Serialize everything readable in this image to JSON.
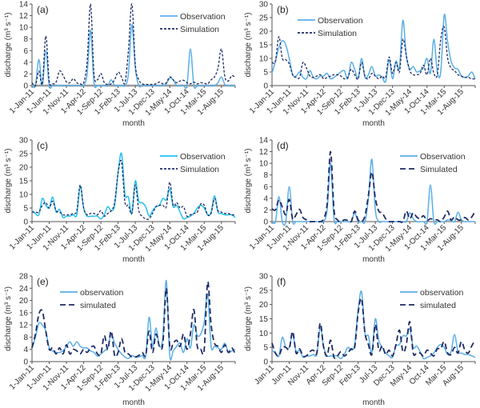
{
  "colors": {
    "observation": "#5aaee6",
    "observation_c": "#25c0ee",
    "simulation": "#1f2a66",
    "baseline": "#9a9a9a"
  },
  "chart_data": [
    {
      "type": "line",
      "panel_label": "(a)",
      "ylabel": "discharge (m³ s⁻¹)",
      "xlabel": "month",
      "ylim": [
        0,
        14
      ],
      "ystep": 2,
      "legend": "top-right",
      "dash": "short",
      "xtick_labels": [
        "1-Jan-11",
        "1-Jun-11",
        "1-Nov-11",
        "1-Apr-12",
        "1-Sep-12",
        "1-Feb-13",
        "1-Jul-13",
        "1-Dec-13",
        "1-May-14",
        "1-Oct-14",
        "1-Mar-15",
        "1-Aug-15"
      ],
      "x_start": "Jan-2011",
      "x_end": "Dec-2015",
      "series": [
        {
          "name": "Observation",
          "values": [
            0,
            0,
            4.5,
            0,
            6,
            0,
            0,
            0,
            0,
            0,
            0,
            0,
            0,
            0,
            0,
            0,
            2,
            9.5,
            0.5,
            0,
            0,
            0,
            0,
            1,
            0,
            0,
            0,
            0,
            2,
            10.5,
            3,
            0,
            0,
            0,
            0,
            0,
            0,
            0,
            0,
            0.3,
            1.3,
            1,
            0,
            0,
            0,
            0,
            6.3,
            0,
            0,
            0,
            0,
            0,
            0,
            0,
            0.5,
            1.5,
            0.2,
            0,
            0,
            0
          ]
        },
        {
          "name": "Simulation",
          "values": [
            0.5,
            0,
            2.5,
            0.3,
            8.5,
            0.8,
            0.3,
            0.6,
            2.5,
            1.8,
            0.6,
            0.5,
            1.2,
            0.5,
            0.3,
            0.5,
            4,
            14,
            2,
            1,
            2.1,
            0.5,
            0.2,
            0.3,
            1,
            2.3,
            1.5,
            0.5,
            6,
            14,
            3.5,
            1,
            0.3,
            0.2,
            0.2,
            0.2,
            0.3,
            0.6,
            0.3,
            0.5,
            1.5,
            1,
            0.5,
            0.8,
            0.9,
            0.5,
            0.3,
            0.6,
            0.3,
            0.5,
            0.4,
            0.3,
            1,
            1.5,
            3,
            6.3,
            1.5,
            0.8,
            1.7,
            1.4
          ]
        }
      ]
    },
    {
      "type": "line",
      "panel_label": "(b)",
      "ylabel": "discharge (m³ s⁻¹)",
      "xlabel": "month",
      "ylim": [
        0,
        30
      ],
      "ystep": 5,
      "legend": "top-left",
      "dash": "short",
      "xtick_labels": [
        "1-Jan-11",
        "1-Jun-11",
        "1-Nov-11",
        "1-Apr-12",
        "1-Sep-12",
        "1-Feb-13",
        "1-Jul-13",
        "1-Dec-13",
        "1-May-14",
        "1-Oct-14",
        "1-Mar-15",
        "1-Aug-15"
      ],
      "x_start": "Jan-2011",
      "x_end": "Dec-2015",
      "series": [
        {
          "name": "Observation",
          "values": [
            4.5,
            9,
            14,
            16.5,
            15,
            10,
            4,
            3.5,
            5,
            3,
            2.5,
            5.5,
            3,
            2.5,
            3.5,
            3.5,
            4.5,
            2.5,
            3,
            4,
            5,
            5.5,
            2.5,
            8.5,
            6,
            2.5,
            10,
            3,
            4,
            7,
            3.5,
            4,
            3,
            1.5,
            9.5,
            2.5,
            9,
            6.5,
            24,
            11,
            6,
            7,
            5,
            5.5,
            6.5,
            10,
            4.5,
            17,
            5,
            5,
            26,
            16,
            9,
            6.5,
            6,
            3.5,
            3,
            3.5,
            5,
            2.5
          ]
        },
        {
          "name": "Simulation",
          "values": [
            8.5,
            9,
            18,
            10,
            9.5,
            8,
            4,
            3,
            3,
            8.5,
            6.5,
            3.5,
            3,
            3.5,
            4,
            2.5,
            3,
            3.5,
            4,
            4,
            3.5,
            2.5,
            3,
            6,
            4,
            2.5,
            8.5,
            3.5,
            2.5,
            4.5,
            3.5,
            2.5,
            3.5,
            3,
            10.5,
            4.5,
            8.5,
            5,
            17,
            11,
            5.5,
            4,
            4,
            4.5,
            7.5,
            4,
            10,
            4.5,
            4,
            17,
            21.5,
            10,
            6.5,
            5.5,
            4,
            3.5,
            3,
            3,
            2.5,
            2.5
          ]
        }
      ]
    },
    {
      "type": "line",
      "panel_label": "(c)",
      "ylabel": "discharge (m³ s⁻¹)",
      "xlabel": "month",
      "ylim": [
        0,
        30
      ],
      "ystep": 5,
      "legend": "top-right",
      "dash": "short",
      "xtick_labels": [
        "1-Jan-11",
        "1-Jun-11",
        "1-Nov-11",
        "1-Apr-12",
        "1-Sep-12",
        "1-Feb-13",
        "1-Jul-13",
        "1-Dec-13",
        "1-May-14",
        "1-Oct-14",
        "1-Mar-15",
        "1-Aug-15"
      ],
      "x_start": "Jan-2011",
      "x_end": "Dec-2015",
      "series": [
        {
          "name": "Observation",
          "values": [
            4,
            3,
            2.5,
            8.5,
            6,
            5,
            9,
            3.5,
            4.5,
            1.5,
            2,
            2,
            2.5,
            2.5,
            13,
            5,
            2,
            2,
            2,
            2,
            1,
            2.5,
            5.5,
            4,
            6,
            18,
            25,
            10,
            9,
            3,
            15,
            7.5,
            7,
            5.5,
            2,
            4,
            5.5,
            6,
            8.5,
            8,
            12,
            5.5,
            6,
            3.5,
            1,
            1.5,
            2,
            3,
            5,
            6,
            5,
            2.5,
            3.5,
            9.5,
            3.5,
            3,
            2.5,
            2.5,
            2.5,
            1.5
          ]
        },
        {
          "name": "Simulation",
          "values": [
            3.5,
            3.5,
            3.5,
            6,
            7,
            5,
            7.5,
            4,
            3.5,
            2.5,
            2.5,
            2.5,
            3,
            4,
            13.5,
            5,
            2.5,
            3,
            3,
            2.5,
            4,
            2,
            3,
            4,
            7,
            18,
            22,
            7,
            6,
            3,
            13.5,
            4,
            2,
            1,
            1,
            3,
            5.5,
            6,
            6,
            5.5,
            14.5,
            6,
            7,
            5,
            5.5,
            2,
            2.5,
            3,
            3.5,
            6.5,
            6,
            2.5,
            3,
            8.5,
            4,
            3.5,
            3,
            3,
            2.5,
            2.5
          ]
        }
      ]
    },
    {
      "type": "line",
      "panel_label": "(d)",
      "ylabel": "discharge (m³ s⁻¹)",
      "xlabel": "month",
      "ylim": [
        0,
        14
      ],
      "ystep": 2,
      "legend": "top-right",
      "dash": "long",
      "xtick_labels": [
        "1-Jan-11",
        "1-Jun-11",
        "1-Nov-11",
        "1-Apr-12",
        "1-Sep-12",
        "1-Feb-13",
        "1-Jul-13",
        "1-Dec-13",
        "1-May-14",
        "1-Oct-14",
        "1-Mar-15",
        "1-Aug-15"
      ],
      "x_start": "Jan-2011",
      "x_end": "Dec-2015",
      "series": [
        {
          "name": "Observation",
          "values": [
            0,
            0,
            4.3,
            0,
            0,
            6,
            0,
            0,
            0,
            0,
            0,
            0,
            0,
            0,
            0,
            0,
            2,
            10,
            0.5,
            0,
            0,
            0,
            0,
            0,
            1.5,
            0,
            0,
            0,
            4,
            10.7,
            2,
            0,
            0,
            0,
            0,
            0,
            0,
            0,
            0,
            0,
            1.5,
            0.5,
            0,
            0,
            0,
            0,
            6.3,
            0,
            0,
            0,
            0,
            0.3,
            0.2,
            0,
            1.6,
            0.3,
            0,
            0,
            0,
            0
          ]
        },
        {
          "name": "Simulated",
          "values": [
            2.2,
            2,
            3.7,
            2.5,
            1.2,
            3.8,
            0.5,
            1.2,
            2.1,
            0.7,
            0.3,
            0,
            0,
            0,
            0,
            0.5,
            3,
            12,
            2,
            0.3,
            0,
            0.3,
            0.2,
            0,
            1.8,
            0.3,
            0,
            1,
            4.5,
            8.5,
            4,
            1.8,
            1.5,
            0.5,
            0,
            0,
            0,
            0,
            0,
            1.8,
            0.5,
            1.5,
            0.8,
            0.5,
            1,
            0.2,
            0.5,
            0.3,
            0.3,
            0,
            0.8,
            1.8,
            0.3,
            0.8,
            0.3,
            0.3,
            0.7,
            0.3,
            0.8,
            1.8
          ]
        }
      ]
    },
    {
      "type": "line",
      "panel_label": "(e)",
      "ylabel": "discharge (m³ s⁻¹)",
      "xlabel": "month",
      "ylim": [
        0,
        28
      ],
      "ystep": 4,
      "legend": "top-left",
      "dash": "long",
      "xtick_labels": [
        "1-Jan-11",
        "1-Jun-11",
        "1-Nov-11",
        "1-Apr-12",
        "1-Sep-12",
        "1-Feb-13",
        "1-Jul-13",
        "1-Dec-13",
        "1-May-14",
        "1-Oct-14",
        "1-Mar-15",
        "1-Aug-15"
      ],
      "x_start": "Jan-2011",
      "x_end": "Dec-2015",
      "series": [
        {
          "name": "observation",
          "values": [
            4.5,
            8,
            12.5,
            12,
            10,
            4.5,
            3.5,
            3,
            3,
            3.5,
            5,
            6.5,
            5,
            6.5,
            5,
            4.5,
            4.5,
            3.5,
            3,
            1.8,
            2.5,
            3.5,
            4.5,
            9,
            6,
            4,
            2.5,
            1.5,
            1,
            2,
            1.5,
            1.5,
            2,
            1.8,
            14.5,
            5,
            11,
            5,
            8,
            26.5,
            2,
            3.5,
            5,
            6,
            3,
            7.5,
            4.5,
            12,
            8.5,
            9,
            13,
            22,
            5,
            5,
            4.5,
            4,
            6,
            3,
            3.5,
            4
          ]
        },
        {
          "name": "simulated",
          "values": [
            4.5,
            9,
            15.5,
            16.5,
            10,
            4,
            4.5,
            2.5,
            4.5,
            2.5,
            5.5,
            2.5,
            4,
            3.5,
            2.5,
            4,
            3,
            4.5,
            5,
            2.5,
            2.5,
            8.5,
            4,
            10,
            2,
            3,
            7.5,
            3,
            2.5,
            1.5,
            1.5,
            2,
            3,
            2,
            10,
            3,
            9,
            5,
            6,
            24,
            5,
            6,
            7,
            5,
            9,
            4,
            9,
            17,
            5,
            4,
            4,
            26,
            12,
            6,
            5,
            3,
            5.5,
            3,
            4.5,
            2.5
          ]
        }
      ]
    },
    {
      "type": "line",
      "panel_label": "(f)",
      "ylabel": "discharge (m³ s⁻¹)",
      "xlabel": "month",
      "ylim": [
        0,
        30
      ],
      "ystep": 5,
      "legend": "top-right",
      "dash": "long",
      "xtick_labels": [
        "Jan-11",
        "Jun-11",
        "Nov-11",
        "Apr-12",
        "Sep-12",
        "Feb-13",
        "Jul-13",
        "Dec-13",
        "May-14",
        "Oct-14",
        "Mar-15",
        "Aug-15"
      ],
      "x_start": "Jan-2011",
      "x_end": "Dec-2015",
      "series": [
        {
          "name": "observation",
          "values": [
            4,
            3,
            2,
            8.5,
            5,
            5,
            9.5,
            3.5,
            4,
            1.5,
            2,
            2,
            2.5,
            2.5,
            12,
            5,
            2,
            2,
            2,
            2,
            1,
            2.5,
            5,
            4,
            6,
            18,
            24.5,
            10,
            9,
            3,
            15,
            7.5,
            5,
            3,
            2,
            1.5,
            5.5,
            6,
            9,
            9,
            11.5,
            5,
            5.5,
            3.5,
            1,
            1.5,
            2,
            3,
            5,
            6,
            5,
            2.5,
            3.5,
            9.5,
            3.5,
            3,
            2.5,
            2.5,
            2,
            1.5
          ]
        },
        {
          "name": "simulated",
          "values": [
            6.5,
            3,
            2,
            5,
            5,
            4.5,
            10.5,
            3,
            4.5,
            2,
            2,
            3.5,
            4,
            3,
            13.5,
            5,
            2,
            7.5,
            1.5,
            2,
            3.5,
            2,
            3,
            4.5,
            5,
            17,
            22,
            10,
            6,
            2.5,
            13,
            4,
            5.5,
            2.5,
            4,
            2,
            6,
            11,
            3.5,
            6,
            14,
            3,
            3,
            3,
            2,
            4,
            3,
            2,
            4.5,
            4.5,
            7,
            3,
            2.5,
            5,
            3,
            7,
            4,
            3,
            5.5,
            7.5
          ]
        }
      ]
    }
  ]
}
